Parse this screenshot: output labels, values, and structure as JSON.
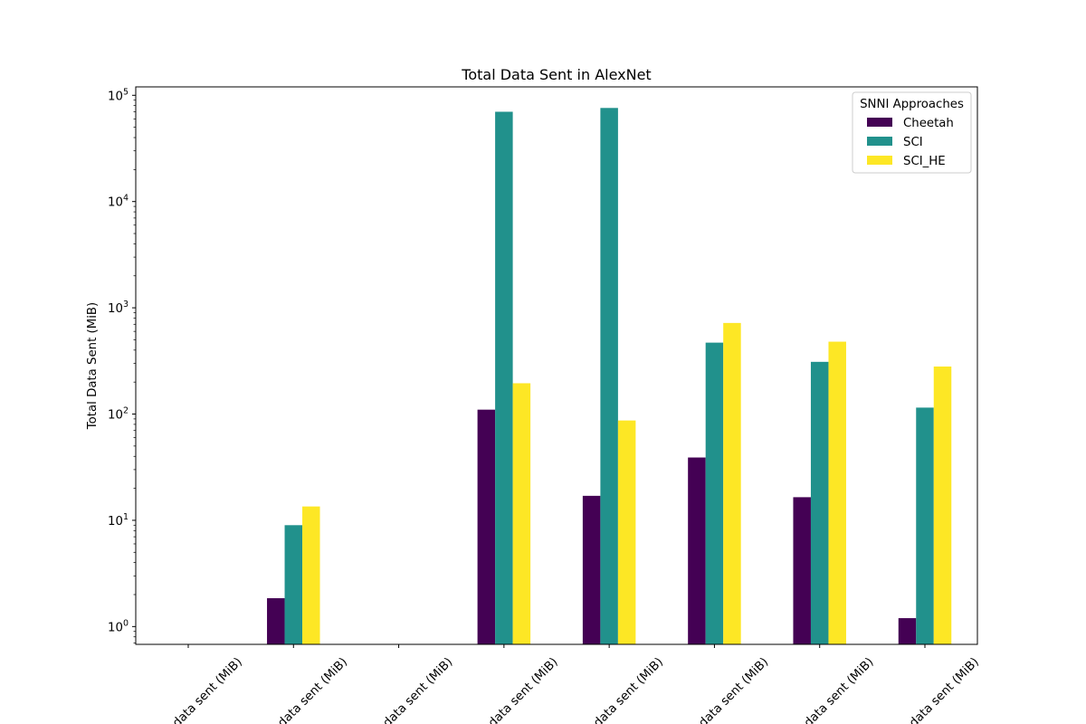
{
  "chart_data": {
    "type": "bar",
    "title": "Total Data Sent in AlexNet",
    "xlabel": "",
    "ylabel": "Total Data Sent (MiB)",
    "y_scale": "log",
    "ylim": [
      0.68,
      120000
    ],
    "y_ticks": [
      {
        "value": 1,
        "base": "10",
        "exp": "0"
      },
      {
        "value": 10,
        "base": "10",
        "exp": "1"
      },
      {
        "value": 100,
        "base": "10",
        "exp": "2"
      },
      {
        "value": 1000,
        "base": "10",
        "exp": "3"
      },
      {
        "value": 10000,
        "base": "10",
        "exp": "4"
      },
      {
        "value": 100000,
        "base": "10",
        "exp": "5"
      }
    ],
    "grid": false,
    "legend": {
      "title": "SNNI Approaches",
      "placement": "top-right"
    },
    "categories": [
      "data sent (MiB)",
      "data sent (MiB)",
      "data sent (MiB)",
      "data sent (MiB)",
      "data sent (MiB)",
      "data sent (MiB)",
      "data sent (MiB)",
      "data sent (MiB)"
    ],
    "series": [
      {
        "name": "Cheetah",
        "color": "#440154",
        "values": [
          null,
          1.85,
          null,
          110,
          17,
          39,
          16.5,
          1.2
        ]
      },
      {
        "name": "SCI",
        "color": "#21918c",
        "values": [
          null,
          9,
          null,
          70000,
          76000,
          470,
          310,
          115
        ]
      },
      {
        "name": "SCI_HE",
        "color": "#fde725",
        "values": [
          null,
          13.5,
          null,
          195,
          87,
          720,
          480,
          280
        ]
      }
    ]
  }
}
